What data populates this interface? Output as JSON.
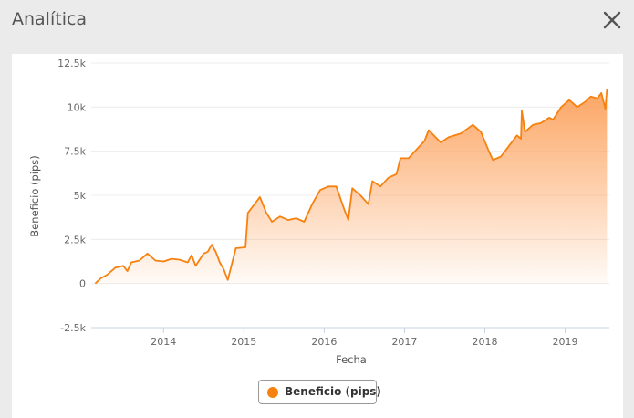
{
  "window": {
    "title": "Analítica",
    "close_icon": "close-icon"
  },
  "chart_data": {
    "type": "area",
    "title": "",
    "xlabel": "Fecha",
    "ylabel": "Beneficio (pips)",
    "ylim": [
      -2500,
      12500
    ],
    "xlim": [
      2013.1,
      2019.55
    ],
    "y_ticks": [
      "12.5k",
      "10k",
      "7.5k",
      "5k",
      "2.5k",
      "0",
      "-2.5k"
    ],
    "y_tick_values": [
      12500,
      10000,
      7500,
      5000,
      2500,
      0,
      -2500
    ],
    "x_ticks": [
      "2014",
      "2015",
      "2016",
      "2017",
      "2018",
      "2019"
    ],
    "x_tick_values": [
      2014,
      2015,
      2016,
      2017,
      2018,
      2019
    ],
    "grid": "horizontal",
    "legend": "bottom-center",
    "series": [
      {
        "name": "Beneficio (pips)",
        "color": "#f7810f",
        "x": [
          2013.15,
          2013.22,
          2013.3,
          2013.4,
          2013.5,
          2013.55,
          2013.6,
          2013.7,
          2013.8,
          2013.9,
          2014.0,
          2014.1,
          2014.2,
          2014.3,
          2014.35,
          2014.4,
          2014.5,
          2014.55,
          2014.6,
          2014.65,
          2014.7,
          2014.75,
          2014.8,
          2014.9,
          2015.02,
          2015.05,
          2015.1,
          2015.2,
          2015.28,
          2015.35,
          2015.45,
          2015.55,
          2015.65,
          2015.75,
          2015.85,
          2015.95,
          2016.05,
          2016.15,
          2016.25,
          2016.3,
          2016.35,
          2016.45,
          2016.55,
          2016.6,
          2016.7,
          2016.8,
          2016.9,
          2016.95,
          2017.05,
          2017.15,
          2017.25,
          2017.3,
          2017.45,
          2017.55,
          2017.7,
          2017.85,
          2017.95,
          2018.05,
          2018.1,
          2018.2,
          2018.3,
          2018.4,
          2018.45,
          2018.46,
          2018.5,
          2018.6,
          2018.7,
          2018.8,
          2018.85,
          2018.95,
          2019.05,
          2019.15,
          2019.25,
          2019.32,
          2019.4,
          2019.45,
          2019.5,
          2019.52
        ],
        "values": [
          0,
          300,
          500,
          900,
          1000,
          700,
          1200,
          1300,
          1700,
          1300,
          1250,
          1400,
          1350,
          1200,
          1600,
          1000,
          1700,
          1800,
          2200,
          1800,
          1200,
          800,
          200,
          2000,
          2050,
          4000,
          4300,
          4900,
          4000,
          3500,
          3800,
          3600,
          3700,
          3500,
          4500,
          5300,
          5500,
          5500,
          4200,
          3600,
          5400,
          5000,
          4500,
          5800,
          5500,
          6000,
          6200,
          7100,
          7100,
          7600,
          8100,
          8700,
          8000,
          8300,
          8500,
          9000,
          8600,
          7500,
          7000,
          7200,
          7800,
          8400,
          8200,
          9800,
          8600,
          9000,
          9100,
          9400,
          9300,
          10000,
          10400,
          10000,
          10300,
          10600,
          10500,
          10800,
          9900,
          11000
        ]
      }
    ]
  }
}
